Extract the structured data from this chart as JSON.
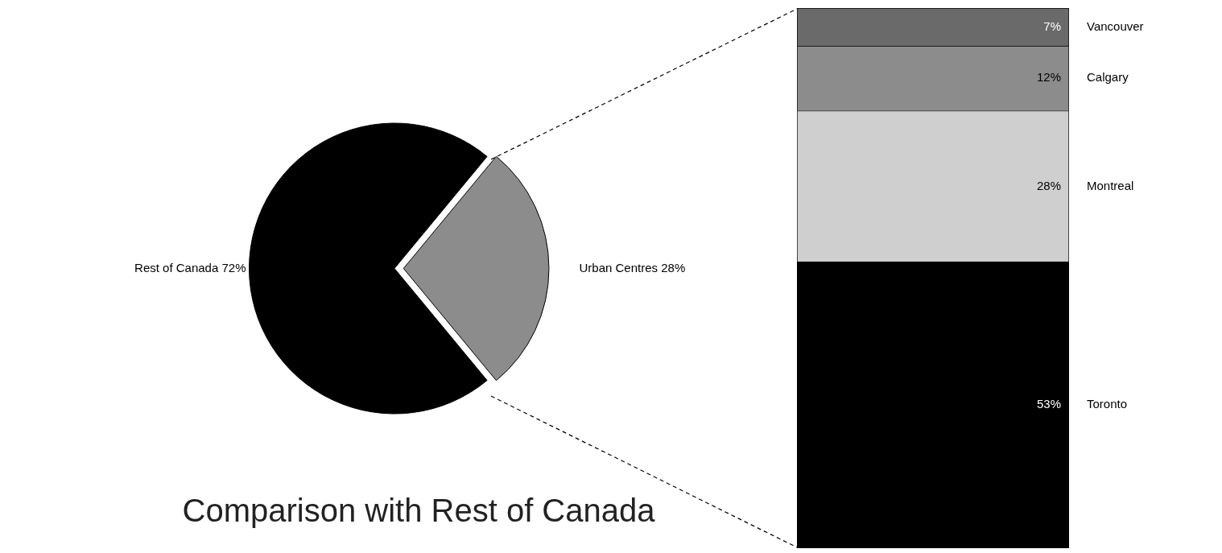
{
  "chart_data": [
    {
      "type": "pie",
      "title": "Comparison with Rest of Canada",
      "categories": [
        "Rest of Canada",
        "Urban Centres"
      ],
      "values": [
        72,
        28
      ],
      "value_labels": [
        "72%",
        "28%"
      ],
      "colors": [
        "#000000",
        "#8c8c8c"
      ],
      "legend": false
    },
    {
      "type": "bar",
      "stacked": true,
      "categories": [
        null
      ],
      "legend": false,
      "series": [
        {
          "name": "Toronto",
          "color": "#000000",
          "values": [
            53
          ],
          "value_labels": [
            "53%"
          ]
        },
        {
          "name": "Montreal",
          "color": "#cfcfcf",
          "values": [
            28
          ],
          "value_labels": [
            "28%"
          ]
        },
        {
          "name": "Calgary",
          "color": "#8c8c8c",
          "values": [
            12
          ],
          "value_labels": [
            "12%"
          ]
        },
        {
          "name": "Vancouver",
          "color": "#6a6a6a",
          "values": [
            7
          ],
          "value_labels": [
            "7%"
          ]
        }
      ]
    }
  ]
}
